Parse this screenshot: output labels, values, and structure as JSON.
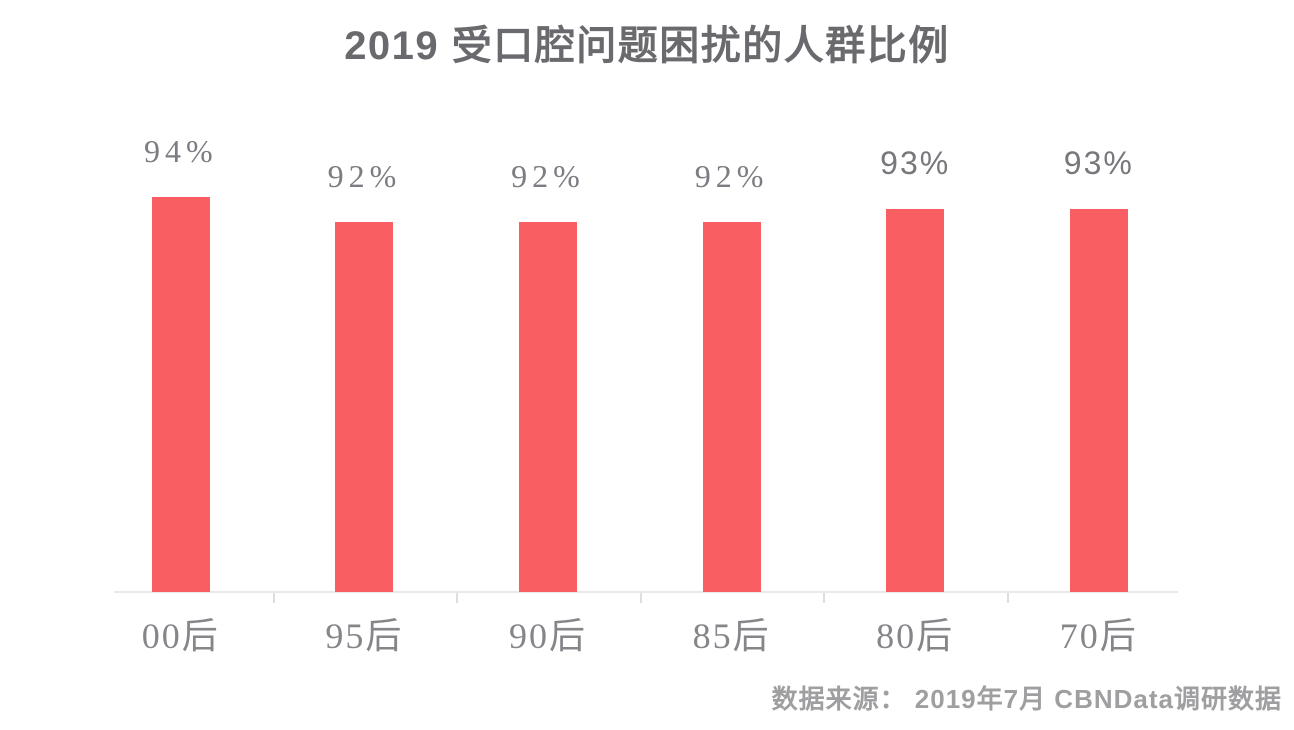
{
  "chart_data": {
    "type": "bar",
    "title": "2019 受口腔问题困扰的人群比例",
    "categories": [
      "00后",
      "95后",
      "90后",
      "85后",
      "80后",
      "70后"
    ],
    "values": [
      94,
      92,
      92,
      92,
      93,
      93
    ],
    "value_labels": [
      "94%",
      "92%",
      "92%",
      "92%",
      "93%",
      "93%"
    ],
    "unit": "%",
    "ylim": [
      63,
      97
    ],
    "bar_color": "#f85e62",
    "grid": false,
    "legend": false,
    "xlabel": "",
    "ylabel": "",
    "source_note": "数据来源： 2019年7月 CBNData调研数据"
  }
}
